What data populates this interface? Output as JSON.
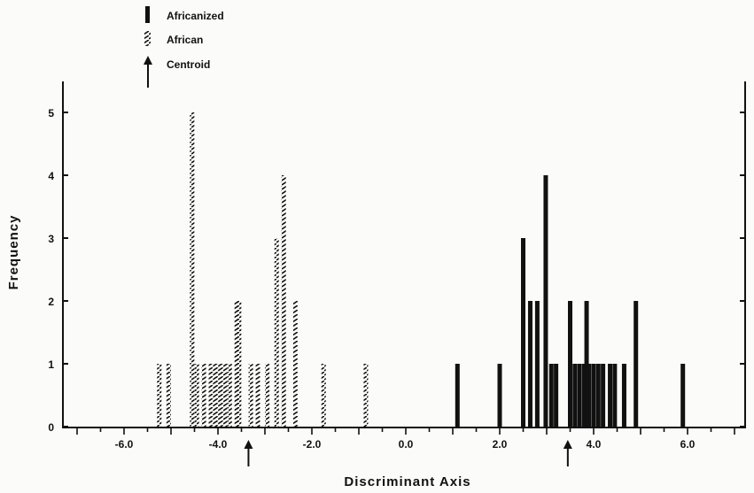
{
  "chart_data": {
    "type": "bar",
    "title": "",
    "xlabel": "Discriminant Axis",
    "ylabel": "Frequency",
    "xlim": [
      -7.0,
      7.0
    ],
    "ylim": [
      0,
      5.5
    ],
    "x_ticks": [
      -6.0,
      -4.0,
      -2.0,
      0.0,
      2.0,
      4.0,
      6.0
    ],
    "x_tick_labels": [
      "-6.0",
      "-4.0",
      "-2.0",
      "0.0",
      "2.0",
      "4.0",
      "6.0"
    ],
    "y_ticks": [
      0,
      1,
      2,
      3,
      4,
      5
    ],
    "y_tick_labels": [
      "0",
      "1",
      "2",
      "3",
      "4",
      "5"
    ],
    "legend_position": "top-left, above plot",
    "series": [
      {
        "name": "Africanized",
        "style": "solid",
        "x": [
          1.1,
          2.0,
          2.5,
          2.65,
          2.8,
          2.98,
          3.1,
          3.2,
          3.5,
          3.6,
          3.7,
          3.8,
          3.85,
          3.9,
          4.0,
          4.1,
          4.2,
          4.35,
          4.45,
          4.65,
          4.9,
          5.9
        ],
        "values": [
          1,
          1,
          3,
          2,
          2,
          4,
          1,
          1,
          2,
          1,
          1,
          1,
          2,
          1,
          1,
          1,
          1,
          1,
          1,
          1,
          2,
          1
        ]
      },
      {
        "name": "African",
        "style": "hatched",
        "x": [
          -5.25,
          -5.05,
          -4.55,
          -4.45,
          -4.3,
          -4.15,
          -4.05,
          -3.95,
          -3.85,
          -3.75,
          -3.6,
          -3.55,
          -3.3,
          -3.15,
          -2.95,
          -2.75,
          -2.6,
          -2.35,
          -1.75,
          -0.85
        ],
        "values": [
          1,
          1,
          5,
          1,
          1,
          1,
          1,
          1,
          1,
          1,
          2,
          2,
          1,
          1,
          1,
          3,
          4,
          2,
          1,
          1
        ]
      }
    ],
    "centroids": {
      "label": "Centroid",
      "African": -3.35,
      "Africanized": 3.45
    }
  },
  "legend": {
    "africanized": "Africanized",
    "african": "African",
    "centroid": "Centroid"
  }
}
